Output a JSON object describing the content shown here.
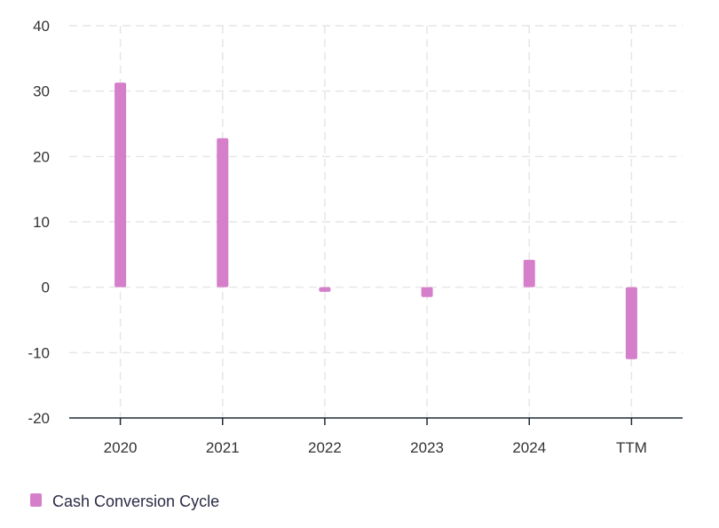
{
  "chart_data": {
    "type": "bar",
    "categories": [
      "2020",
      "2021",
      "2022",
      "2023",
      "2024",
      "TTM"
    ],
    "series": [
      {
        "name": "Cash Conversion Cycle",
        "values": [
          31.3,
          22.8,
          -0.7,
          -1.5,
          4.2,
          -11.0
        ],
        "color": "#d57fcb"
      }
    ],
    "ylim": [
      -20,
      40
    ],
    "yticks": [
      "40",
      "30",
      "20",
      "10",
      "0",
      "-10",
      "-20"
    ],
    "grid": true,
    "legend_position": "bottom-left"
  }
}
